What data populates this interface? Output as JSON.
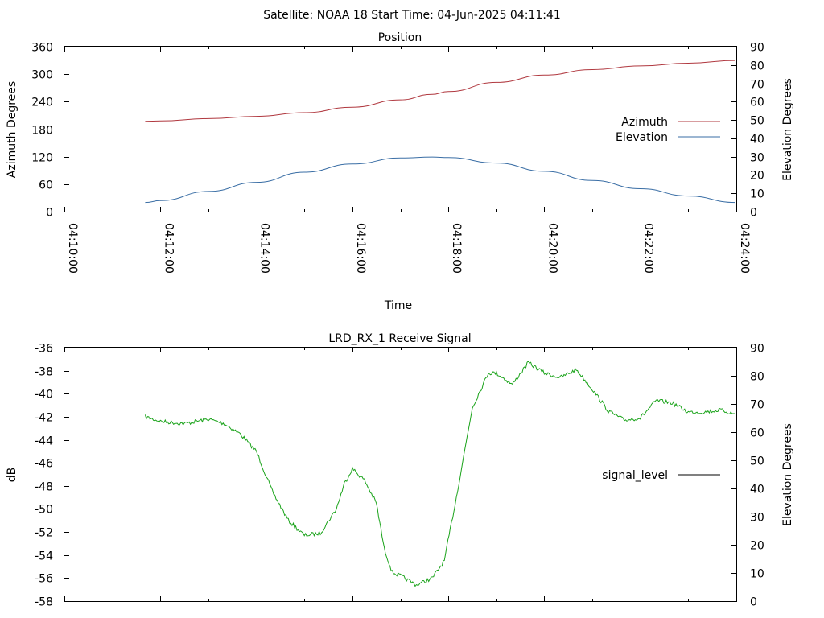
{
  "figure": {
    "title": "Satellite: NOAA 18    Start Time: 04-Jun-2025 04:11:41"
  },
  "chart_data": [
    {
      "type": "line",
      "title": "Position",
      "xlabel": "Time",
      "ylabel": "Azimuth Degrees",
      "y2label": "Elevation Degrees",
      "xlim": [
        "04:10:00",
        "04:24:00"
      ],
      "ylim": [
        0,
        360
      ],
      "y2lim": [
        0,
        90
      ],
      "x_ticks": [
        "04:10:00",
        "04:12:00",
        "04:14:00",
        "04:16:00",
        "04:18:00",
        "04:20:00",
        "04:22:00",
        "04:24:00"
      ],
      "y_ticks": [
        0,
        60,
        120,
        180,
        240,
        300,
        360
      ],
      "y2_ticks": [
        0,
        10,
        20,
        30,
        40,
        50,
        60,
        70,
        80,
        90
      ],
      "legend_position": "right-center",
      "x": [
        "04:11:41",
        "04:12:00",
        "04:13:00",
        "04:14:00",
        "04:15:00",
        "04:16:00",
        "04:17:00",
        "04:17:40",
        "04:18:00",
        "04:19:00",
        "04:20:00",
        "04:21:00",
        "04:22:00",
        "04:23:00",
        "04:23:59"
      ],
      "series": [
        {
          "name": "Azimuth",
          "axis": "y",
          "color": "#b0383f",
          "values": [
            197,
            198,
            203,
            208,
            216,
            228,
            244,
            256,
            262,
            282,
            298,
            310,
            318,
            324,
            330
          ]
        },
        {
          "name": "Elevation",
          "axis": "y2",
          "color": "#3a6ea5",
          "values": [
            5,
            6,
            11,
            16,
            21.5,
            26,
            29.3,
            29.8,
            29.5,
            26.5,
            22,
            17,
            12.5,
            8.5,
            5
          ]
        }
      ]
    },
    {
      "type": "line",
      "title": "LRD_RX_1 Receive Signal",
      "ylabel": "dB",
      "y2label": "Elevation Degrees",
      "xlim": [
        "04:10:00",
        "04:24:00"
      ],
      "ylim": [
        -58,
        -36
      ],
      "y2lim": [
        0,
        90
      ],
      "y_ticks": [
        -58,
        -56,
        -54,
        -52,
        -50,
        -48,
        -46,
        -44,
        -42,
        -40,
        -38,
        -36
      ],
      "y2_ticks": [
        0,
        10,
        20,
        30,
        40,
        50,
        60,
        70,
        80,
        90
      ],
      "legend_position": "right-center",
      "x": [
        "04:11:41",
        "04:12:00",
        "04:12:30",
        "04:13:00",
        "04:13:20",
        "04:13:40",
        "04:14:00",
        "04:14:20",
        "04:14:40",
        "04:15:00",
        "04:15:20",
        "04:15:40",
        "04:15:50",
        "04:16:00",
        "04:16:15",
        "04:16:30",
        "04:16:40",
        "04:16:50",
        "04:17:00",
        "04:17:20",
        "04:17:40",
        "04:17:55",
        "04:18:10",
        "04:18:30",
        "04:18:50",
        "04:19:00",
        "04:19:20",
        "04:19:40",
        "04:20:00",
        "04:20:20",
        "04:20:40",
        "04:21:00",
        "04:21:20",
        "04:21:40",
        "04:22:00",
        "04:22:20",
        "04:22:40",
        "04:23:00",
        "04:23:20",
        "04:23:40",
        "04:23:59"
      ],
      "series": [
        {
          "name": "signal_level",
          "axis": "y",
          "color": "#1aa31a",
          "values": [
            -42,
            -42.4,
            -42.6,
            -42.2,
            -42.6,
            -43.5,
            -45,
            -48.5,
            -51,
            -52.3,
            -52.1,
            -50,
            -47.8,
            -46.5,
            -47.5,
            -49.5,
            -53.5,
            -55.5,
            -55.8,
            -56.6,
            -56,
            -54.5,
            -49,
            -41.2,
            -38.2,
            -38.2,
            -39.2,
            -37.3,
            -38.2,
            -38.6,
            -37.9,
            -39.6,
            -41.5,
            -42.3,
            -42.1,
            -40.6,
            -40.8,
            -41.6,
            -41.6,
            -41.4,
            -41.8
          ]
        }
      ]
    }
  ]
}
